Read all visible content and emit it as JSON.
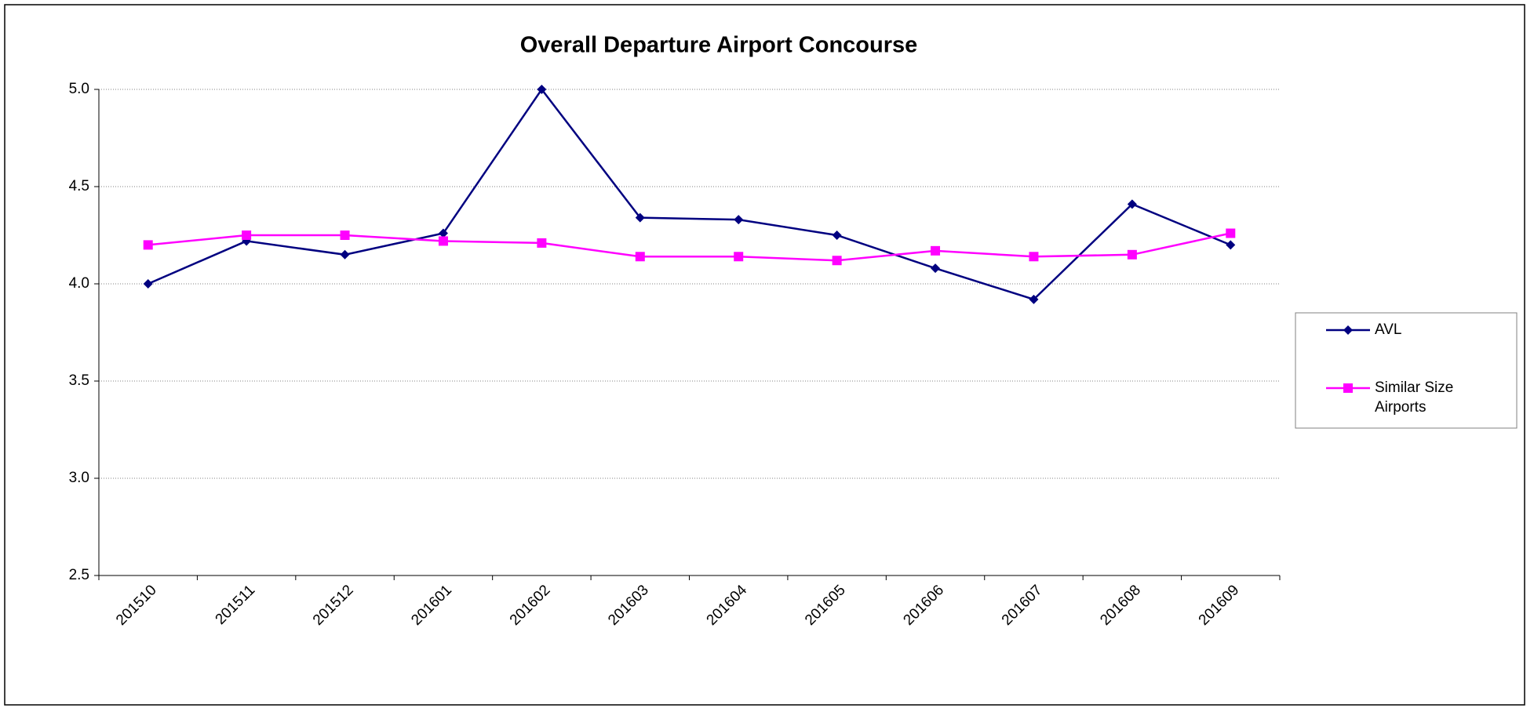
{
  "chart_data": {
    "type": "line",
    "title": "Overall Departure Airport Concourse",
    "categories": [
      "201510",
      "201511",
      "201512",
      "201601",
      "201602",
      "201603",
      "201604",
      "201605",
      "201606",
      "201607",
      "201608",
      "201609"
    ],
    "series": [
      {
        "name": "AVL",
        "color": "#000080",
        "marker": "diamond",
        "values": [
          4.0,
          4.22,
          4.15,
          4.26,
          5.0,
          4.34,
          4.33,
          4.25,
          4.08,
          3.92,
          4.41,
          4.2
        ]
      },
      {
        "name": "Similar Size Airports",
        "color": "#ff00ff",
        "marker": "square",
        "values": [
          4.2,
          4.25,
          4.25,
          4.22,
          4.21,
          4.14,
          4.14,
          4.12,
          4.17,
          4.14,
          4.15,
          4.26
        ]
      }
    ],
    "ylim": [
      2.5,
      5.0
    ],
    "yticks": [
      2.5,
      {
        "value": 3.0,
        "label": "3.0"
      },
      3.5,
      {
        "value": 4.0,
        "label": "4.0"
      },
      4.5,
      {
        "value": 5.0,
        "label": "5.0"
      }
    ],
    "grid": true,
    "legend": "right"
  }
}
